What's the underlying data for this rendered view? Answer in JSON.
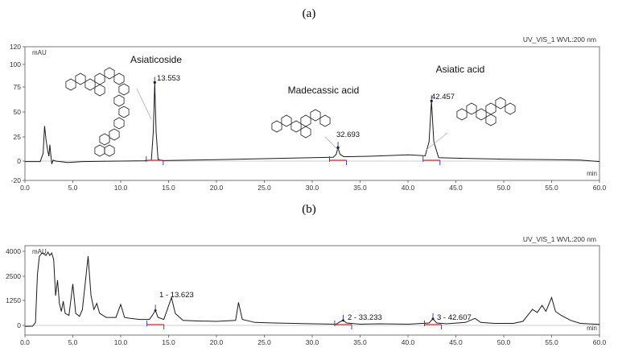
{
  "chart_data": [
    {
      "type": "line",
      "panel_label": "(a)",
      "instrument_label": "UV_VIS_1 WVL:200 nm",
      "ylabel": "mAU",
      "xlabel": "min",
      "xlim": [
        0,
        60
      ],
      "ylim": [
        -20,
        120
      ],
      "x_ticks": [
        "0.0",
        "5.0",
        "10.0",
        "15.0",
        "20.0",
        "25.0",
        "30.0",
        "35.0",
        "40.0",
        "45.0",
        "50.0",
        "55.0",
        "60.0"
      ],
      "y_ticks": [
        "-20",
        "0",
        "25",
        "50",
        "75",
        "100",
        "120"
      ],
      "series": [
        {
          "points": [
            [
              0.0,
              -0.5
            ],
            [
              1.6,
              -0.5
            ],
            [
              1.9,
              8
            ],
            [
              2.05,
              36
            ],
            [
              2.2,
              22
            ],
            [
              2.35,
              12
            ],
            [
              2.5,
              5
            ],
            [
              2.6,
              17
            ],
            [
              2.7,
              7
            ],
            [
              2.8,
              -3
            ],
            [
              2.95,
              1
            ],
            [
              3.2,
              0
            ],
            [
              4.5,
              -1.5
            ],
            [
              6,
              -0.5
            ],
            [
              10,
              0
            ],
            [
              12.5,
              0.3
            ],
            [
              13.2,
              1
            ],
            [
              13.4,
              30
            ],
            [
              13.553,
              80
            ],
            [
              13.7,
              30
            ],
            [
              13.9,
              2
            ],
            [
              14.3,
              0.5
            ],
            [
              20,
              1.5
            ],
            [
              25,
              2.5
            ],
            [
              30,
              3.5
            ],
            [
              32.2,
              4
            ],
            [
              32.5,
              7
            ],
            [
              32.693,
              14
            ],
            [
              32.9,
              7
            ],
            [
              33.3,
              4.5
            ],
            [
              36,
              5
            ],
            [
              40,
              6.5
            ],
            [
              41.8,
              5.5
            ],
            [
              42.2,
              20
            ],
            [
              42.457,
              61
            ],
            [
              42.7,
              20
            ],
            [
              43.2,
              3.5
            ],
            [
              45,
              3
            ],
            [
              50,
              2
            ],
            [
              55,
              1.5
            ],
            [
              58,
              1
            ],
            [
              60,
              -0.5
            ]
          ],
          "peak_points": [
            [
              13.553,
              80
            ],
            [
              32.693,
              14
            ],
            [
              42.457,
              61
            ]
          ]
        }
      ],
      "peaks": [
        {
          "rt": "13.553",
          "name": "Asiaticoside"
        },
        {
          "rt": "32.693",
          "name": "Madecassic acid"
        },
        {
          "rt": "42.457",
          "name": "Asiatic acid"
        }
      ]
    },
    {
      "type": "line",
      "panel_label": "(b)",
      "instrument_label": "UV_VIS_1 WVL:200 nm",
      "ylabel": "mAU",
      "xlabel": "min",
      "xlim": [
        0,
        60
      ],
      "ylim": [
        -200,
        4000
      ],
      "x_ticks": [
        "0.0",
        "5.0",
        "10.0",
        "15.0",
        "20.0",
        "25.0",
        "30.0",
        "35.0",
        "40.0",
        "45.0",
        "50.0",
        "55.0",
        "60.0"
      ],
      "y_ticks": [
        "0",
        "1250",
        "2500",
        "4000"
      ],
      "series": [
        {
          "points": [
            [
              0.0,
              -50
            ],
            [
              0.8,
              -40
            ],
            [
              1.1,
              150
            ],
            [
              1.3,
              2600
            ],
            [
              1.5,
              3700
            ],
            [
              1.8,
              3900
            ],
            [
              2.2,
              3750
            ],
            [
              2.4,
              3950
            ],
            [
              2.6,
              3750
            ],
            [
              2.8,
              3900
            ],
            [
              3.0,
              3500
            ],
            [
              3.2,
              1500
            ],
            [
              3.4,
              2300
            ],
            [
              3.6,
              1100
            ],
            [
              3.8,
              700
            ],
            [
              4.0,
              1200
            ],
            [
              4.2,
              600
            ],
            [
              4.6,
              500
            ],
            [
              5.0,
              2100
            ],
            [
              5.3,
              600
            ],
            [
              5.7,
              450
            ],
            [
              6.0,
              800
            ],
            [
              6.6,
              3700
            ],
            [
              6.9,
              1500
            ],
            [
              7.2,
              800
            ],
            [
              7.5,
              1100
            ],
            [
              7.8,
              600
            ],
            [
              8.5,
              400
            ],
            [
              9.5,
              400
            ],
            [
              10.0,
              1050
            ],
            [
              10.4,
              400
            ],
            [
              11,
              350
            ],
            [
              12,
              300
            ],
            [
              13.0,
              300
            ],
            [
              13.3,
              500
            ],
            [
              13.623,
              750
            ],
            [
              13.9,
              400
            ],
            [
              14.5,
              300
            ],
            [
              15.3,
              1400
            ],
            [
              15.7,
              600
            ],
            [
              16.5,
              250
            ],
            [
              18,
              220
            ],
            [
              20,
              200
            ],
            [
              22.0,
              250
            ],
            [
              22.3,
              1150
            ],
            [
              22.7,
              300
            ],
            [
              24,
              150
            ],
            [
              26,
              120
            ],
            [
              28,
              100
            ],
            [
              30,
              80
            ],
            [
              32.5,
              60
            ],
            [
              32.9,
              180
            ],
            [
              33.233,
              250
            ],
            [
              33.6,
              120
            ],
            [
              35,
              60
            ],
            [
              37,
              80
            ],
            [
              40,
              60
            ],
            [
              42.2,
              120
            ],
            [
              42.607,
              330
            ],
            [
              43.0,
              120
            ],
            [
              44,
              80
            ],
            [
              46,
              150
            ],
            [
              47.0,
              350
            ],
            [
              47.6,
              150
            ],
            [
              49,
              100
            ],
            [
              51,
              100
            ],
            [
              52,
              200
            ],
            [
              52.5,
              500
            ],
            [
              53.0,
              800
            ],
            [
              53.5,
              650
            ],
            [
              54.0,
              1000
            ],
            [
              54.4,
              700
            ],
            [
              55.0,
              1400
            ],
            [
              55.4,
              700
            ],
            [
              56.0,
              500
            ],
            [
              57,
              250
            ],
            [
              58,
              100
            ],
            [
              60,
              50
            ]
          ],
          "peak_points": [
            [
              13.623,
              750
            ],
            [
              33.233,
              250
            ],
            [
              42.607,
              330
            ]
          ]
        }
      ],
      "peaks": [
        {
          "label": "1 - 13.623"
        },
        {
          "label": "2 - 33.233"
        },
        {
          "label": "3 - 42.607"
        }
      ]
    }
  ]
}
